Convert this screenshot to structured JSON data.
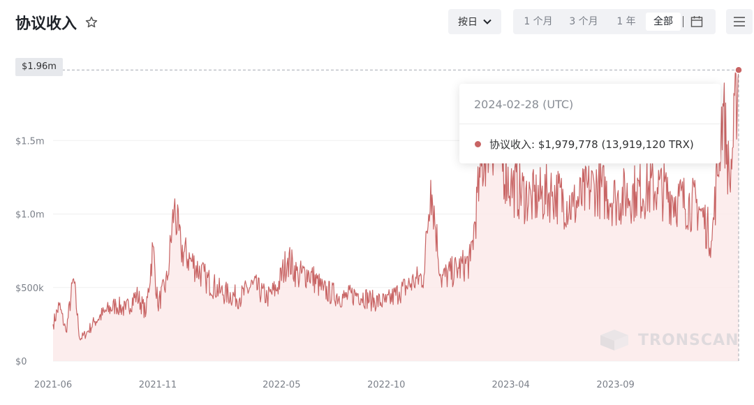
{
  "header": {
    "title": "协议收入",
    "period_select": {
      "label": "按日"
    },
    "ranges": [
      {
        "label": "1 个月",
        "active": false
      },
      {
        "label": "3 个月",
        "active": false
      },
      {
        "label": "1 年",
        "active": false
      },
      {
        "label": "全部",
        "active": true
      }
    ],
    "icons": {
      "favorite": "star-outline-icon",
      "calendar": "calendar-icon",
      "menu": "hamburger-menu-icon"
    }
  },
  "tooltip": {
    "date": "2024-02-28 (UTC)",
    "series_label": "协议收入",
    "value": "$1,979,778 (13,919,120 TRX)"
  },
  "crosshair_value_label": "$1.96m",
  "watermark": "TRONSCAN",
  "colors": {
    "series": "#c86464",
    "area": "#fbe9e9",
    "grid": "#efefef",
    "axis_text": "#7a7f88"
  },
  "chart_data": {
    "type": "area",
    "title": "协议收入",
    "x_tick_labels": [
      "2021-06",
      "2021-11",
      "2022-05",
      "2022-10",
      "2023-04",
      "2023-09"
    ],
    "y_tick_labels": [
      "$0",
      "$500k",
      "$1.0m",
      "$1.5m"
    ],
    "ylim": [
      0,
      2000000
    ],
    "grid": "horizontal",
    "legend": "none",
    "series": [
      {
        "name": "协议收入",
        "points": [
          [
            "2021-06-01",
            250000
          ],
          [
            "2021-06-10",
            380000
          ],
          [
            "2021-06-20",
            200000
          ],
          [
            "2021-07-01",
            560000
          ],
          [
            "2021-07-10",
            150000
          ],
          [
            "2021-07-20",
            190000
          ],
          [
            "2021-08-01",
            270000
          ],
          [
            "2021-08-15",
            330000
          ],
          [
            "2021-09-01",
            380000
          ],
          [
            "2021-09-15",
            350000
          ],
          [
            "2021-10-01",
            450000
          ],
          [
            "2021-10-15",
            330000
          ],
          [
            "2021-10-25",
            780000
          ],
          [
            "2021-11-01",
            380000
          ],
          [
            "2021-11-15",
            550000
          ],
          [
            "2021-11-25",
            1050000
          ],
          [
            "2021-12-05",
            760000
          ],
          [
            "2021-12-20",
            680000
          ],
          [
            "2022-01-10",
            560000
          ],
          [
            "2022-02-01",
            470000
          ],
          [
            "2022-03-01",
            430000
          ],
          [
            "2022-03-20",
            520000
          ],
          [
            "2022-04-10",
            430000
          ],
          [
            "2022-04-25",
            500000
          ],
          [
            "2022-05-10",
            700000
          ],
          [
            "2022-05-25",
            580000
          ],
          [
            "2022-06-10",
            600000
          ],
          [
            "2022-07-01",
            480000
          ],
          [
            "2022-08-01",
            430000
          ],
          [
            "2022-08-20",
            460000
          ],
          [
            "2022-09-10",
            410000
          ],
          [
            "2022-10-01",
            400000
          ],
          [
            "2022-10-20",
            470000
          ],
          [
            "2022-11-10",
            540000
          ],
          [
            "2022-11-25",
            580000
          ],
          [
            "2022-12-05",
            1230000
          ],
          [
            "2022-12-20",
            560000
          ],
          [
            "2023-01-15",
            630000
          ],
          [
            "2023-02-01",
            680000
          ],
          [
            "2023-02-15",
            1250000
          ],
          [
            "2023-03-01",
            1550000
          ],
          [
            "2023-04-01",
            1200000
          ],
          [
            "2023-05-01",
            1100000
          ],
          [
            "2023-06-01",
            1150000
          ],
          [
            "2023-07-01",
            1050000
          ],
          [
            "2023-08-01",
            1200000
          ],
          [
            "2023-09-01",
            1100000
          ],
          [
            "2023-10-01",
            1150000
          ],
          [
            "2023-11-01",
            1180000
          ],
          [
            "2023-12-01",
            1100000
          ],
          [
            "2024-01-01",
            1050000
          ],
          [
            "2024-01-20",
            820000
          ],
          [
            "2024-02-05",
            1750000
          ],
          [
            "2024-02-15",
            1200000
          ],
          [
            "2024-02-28",
            1979778
          ]
        ]
      }
    ]
  }
}
